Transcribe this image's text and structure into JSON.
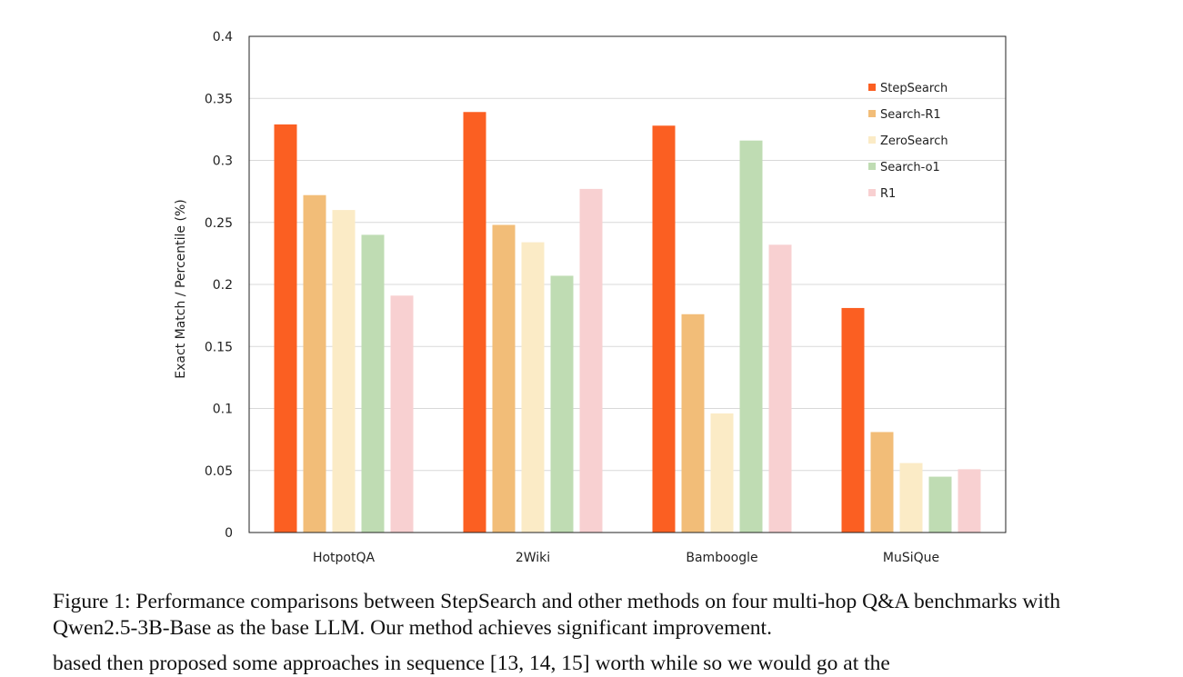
{
  "chart_data": {
    "type": "bar",
    "title": "",
    "xlabel": "",
    "ylabel": "Exact Match / Percentile (%)",
    "ylim": [
      0,
      0.4
    ],
    "yticks": [
      "0",
      "0.05",
      "0.1",
      "0.15",
      "0.2",
      "0.25",
      "0.3",
      "0.35",
      "0.4"
    ],
    "grid": true,
    "legend_position": "top-right",
    "categories": [
      "HotpotQA",
      "2Wiki",
      "Bamboogle",
      "MuSiQue"
    ],
    "series": [
      {
        "name": "StepSearch",
        "color": "#fb5f22",
        "values": [
          0.329,
          0.339,
          0.328,
          0.181
        ]
      },
      {
        "name": "Search-R1",
        "color": "#f2bd78",
        "values": [
          0.272,
          0.248,
          0.176,
          0.081
        ]
      },
      {
        "name": "ZeroSearch",
        "color": "#fbebc6",
        "values": [
          0.26,
          0.234,
          0.096,
          0.056
        ]
      },
      {
        "name": "Search-o1",
        "color": "#bfdcb3",
        "values": [
          0.24,
          0.207,
          0.316,
          0.045
        ]
      },
      {
        "name": "R1",
        "color": "#f8d0d1",
        "values": [
          0.191,
          0.277,
          0.232,
          0.051
        ]
      }
    ]
  },
  "caption": {
    "text": "Figure 1: Performance comparisons between StepSearch and other methods on four multi-hop Q&A benchmarks with Qwen2.5-3B-Base as the base LLM. Our method achieves significant improvement."
  },
  "body_text": {
    "cutoff_line": "based then proposed some approaches in sequence [13, 14, 15] worth while so we would go at the"
  }
}
